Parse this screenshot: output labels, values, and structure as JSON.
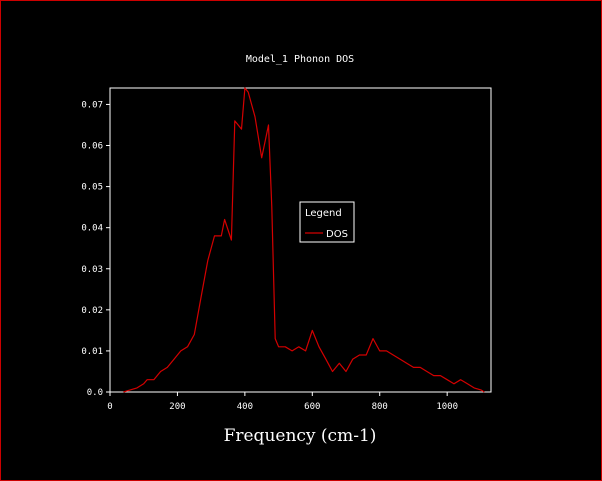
{
  "colors": {
    "background": "#000000",
    "frame": "#cc0000",
    "axes": "#ffffff",
    "series": "#d40000"
  },
  "chart_data": {
    "type": "line",
    "title": "Model_1 Phonon DOS",
    "xlabel": "Frequency (cm-1)",
    "ylabel": "",
    "xlim": [
      0,
      1130
    ],
    "ylim": [
      0,
      0.074
    ],
    "xticks": [
      0,
      200,
      400,
      600,
      800,
      1000
    ],
    "xtick_labels": [
      "0",
      "200",
      "400",
      "600",
      "800",
      "1000"
    ],
    "yticks": [
      0,
      0.01,
      0.02,
      0.03,
      0.04,
      0.05,
      0.06,
      0.07
    ],
    "ytick_labels": [
      "0.0",
      "0.01",
      "0.02",
      "0.03",
      "0.04",
      "0.05",
      "0.06",
      "0.07"
    ],
    "grid": false,
    "legend": {
      "title": "Legend",
      "placement": "center-right"
    },
    "series": [
      {
        "name": "DOS",
        "x": [
          40,
          60,
          80,
          100,
          110,
          130,
          150,
          170,
          190,
          210,
          230,
          250,
          270,
          290,
          310,
          330,
          340,
          360,
          370,
          390,
          400,
          410,
          430,
          450,
          470,
          480,
          490,
          500,
          520,
          540,
          560,
          580,
          600,
          620,
          640,
          660,
          680,
          700,
          720,
          740,
          760,
          780,
          800,
          820,
          840,
          860,
          880,
          900,
          920,
          940,
          960,
          980,
          1000,
          1020,
          1040,
          1060,
          1080,
          1100,
          1110
        ],
        "y": [
          0.0,
          0.0005,
          0.001,
          0.002,
          0.003,
          0.003,
          0.005,
          0.006,
          0.008,
          0.01,
          0.011,
          0.014,
          0.023,
          0.032,
          0.038,
          0.038,
          0.042,
          0.037,
          0.066,
          0.064,
          0.074,
          0.073,
          0.067,
          0.057,
          0.065,
          0.045,
          0.013,
          0.011,
          0.011,
          0.01,
          0.011,
          0.01,
          0.015,
          0.011,
          0.008,
          0.005,
          0.007,
          0.005,
          0.008,
          0.009,
          0.009,
          0.013,
          0.01,
          0.01,
          0.009,
          0.008,
          0.007,
          0.006,
          0.006,
          0.005,
          0.004,
          0.004,
          0.003,
          0.002,
          0.003,
          0.002,
          0.001,
          0.0005,
          0.0
        ]
      }
    ]
  }
}
